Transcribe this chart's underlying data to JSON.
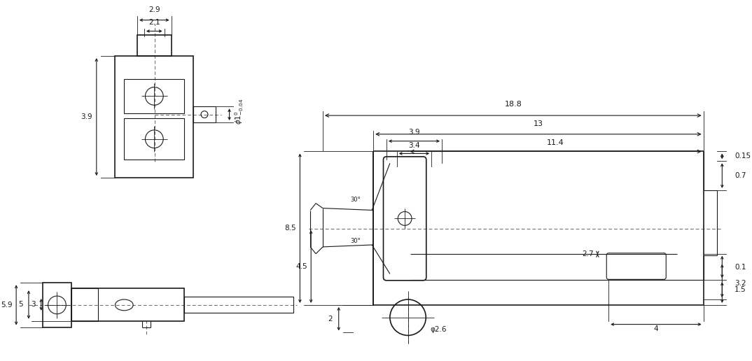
{
  "bg_color": "#ffffff",
  "line_color": "#1a1a1a",
  "dim_color": "#1a1a1a",
  "dashed_color": "#555555",
  "thin_lw": 0.8,
  "med_lw": 1.2,
  "thick_lw": 1.5,
  "font_size": 7.5,
  "font_family": "Arial"
}
